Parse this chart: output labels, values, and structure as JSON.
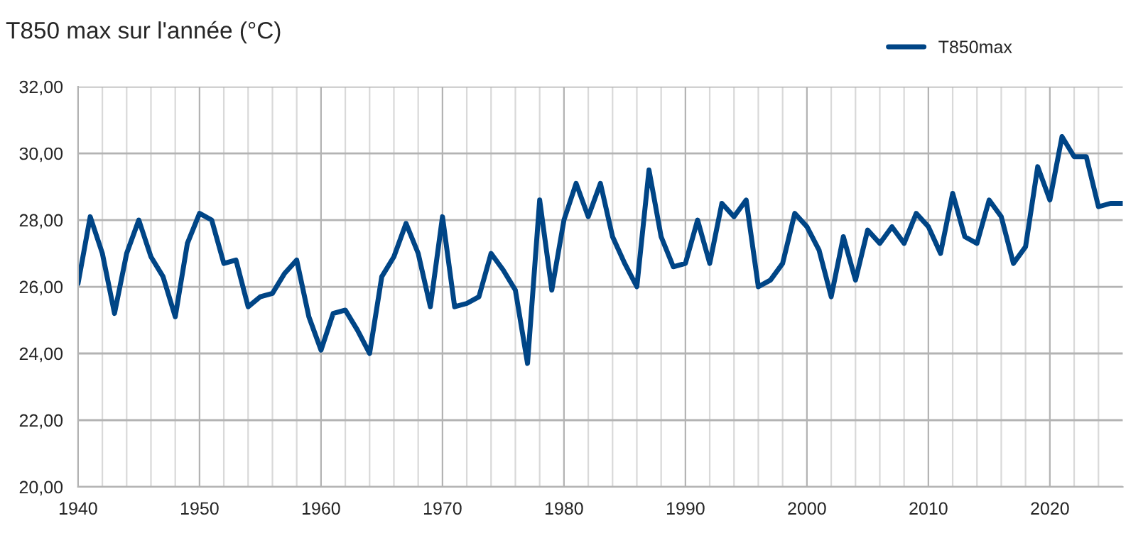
{
  "chart_data": {
    "type": "line",
    "title": "T850 max sur l'année (°C)",
    "x": [
      1940,
      1941,
      1942,
      1943,
      1944,
      1945,
      1946,
      1947,
      1948,
      1949,
      1950,
      1951,
      1952,
      1953,
      1954,
      1955,
      1956,
      1957,
      1958,
      1959,
      1960,
      1961,
      1962,
      1963,
      1964,
      1965,
      1966,
      1967,
      1968,
      1969,
      1970,
      1971,
      1972,
      1973,
      1974,
      1975,
      1976,
      1977,
      1978,
      1979,
      1980,
      1981,
      1982,
      1983,
      1984,
      1985,
      1986,
      1987,
      1988,
      1989,
      1990,
      1991,
      1992,
      1993,
      1994,
      1995,
      1996,
      1997,
      1998,
      1999,
      2000,
      2001,
      2002,
      2003,
      2004,
      2005,
      2006,
      2007,
      2008,
      2009,
      2010,
      2011,
      2012,
      2013,
      2014,
      2015,
      2016,
      2017,
      2018,
      2019,
      2020,
      2021,
      2022,
      2023,
      2024,
      2025,
      2026
    ],
    "series": [
      {
        "name": "T850max",
        "color": "#004586",
        "values": [
          26.1,
          28.1,
          27.0,
          25.2,
          27.0,
          28.0,
          26.9,
          26.3,
          25.1,
          27.3,
          28.2,
          28.0,
          26.7,
          26.8,
          25.4,
          25.7,
          25.8,
          26.4,
          26.8,
          25.1,
          24.1,
          25.2,
          25.3,
          24.7,
          24.0,
          26.3,
          26.9,
          27.9,
          27.0,
          25.4,
          28.1,
          25.4,
          25.5,
          25.7,
          27.0,
          26.5,
          25.9,
          23.7,
          28.6,
          25.9,
          28.0,
          29.1,
          28.1,
          29.1,
          27.5,
          26.7,
          26.0,
          29.5,
          27.5,
          26.6,
          26.7,
          28.0,
          26.7,
          28.5,
          28.1,
          28.6,
          26.0,
          26.2,
          26.7,
          28.2,
          27.8,
          27.1,
          25.7,
          27.5,
          26.2,
          27.7,
          27.3,
          27.8,
          27.3,
          28.2,
          27.8,
          27.0,
          28.8,
          27.5,
          27.3,
          28.6,
          28.1,
          26.7,
          27.2,
          29.6,
          28.6,
          30.5,
          29.9,
          29.9,
          28.4,
          28.5,
          28.5
        ]
      }
    ],
    "xlim": [
      1940,
      2026
    ],
    "xticks": [
      1940,
      {
        "value": 1942,
        "label": null
      },
      {
        "value": 1944,
        "label": null
      },
      {
        "value": 1946,
        "label": null
      },
      {
        "value": 1948,
        "label": null
      },
      1950,
      {
        "value": 1952,
        "label": null
      },
      {
        "value": 1954,
        "label": null
      },
      {
        "value": 1956,
        "label": null
      },
      {
        "value": 1958,
        "label": null
      },
      1960,
      {
        "value": 1962,
        "label": null
      },
      {
        "value": 1964,
        "label": null
      },
      {
        "value": 1966,
        "label": null
      },
      {
        "value": 1968,
        "label": null
      },
      1970,
      {
        "value": 1972,
        "label": null
      },
      {
        "value": 1974,
        "label": null
      },
      {
        "value": 1976,
        "label": null
      },
      {
        "value": 1978,
        "label": null
      },
      1980,
      {
        "value": 1982,
        "label": null
      },
      {
        "value": 1984,
        "label": null
      },
      {
        "value": 1986,
        "label": null
      },
      {
        "value": 1988,
        "label": null
      },
      1990,
      {
        "value": 1992,
        "label": null
      },
      {
        "value": 1994,
        "label": null
      },
      {
        "value": 1996,
        "label": null
      },
      {
        "value": 1998,
        "label": null
      },
      2000,
      {
        "value": 2002,
        "label": null
      },
      {
        "value": 2004,
        "label": null
      },
      {
        "value": 2006,
        "label": null
      },
      {
        "value": 2008,
        "label": null
      },
      2010,
      {
        "value": 2012,
        "label": null
      },
      {
        "value": 2014,
        "label": null
      },
      {
        "value": 2016,
        "label": null
      },
      {
        "value": 2018,
        "label": null
      },
      2020,
      {
        "value": 2022,
        "label": null
      },
      {
        "value": 2024,
        "label": null
      }
    ],
    "ylim": [
      20,
      32
    ],
    "yticks": [
      {
        "value": 20,
        "label": "20,00"
      },
      {
        "value": 22,
        "label": "22,00"
      },
      {
        "value": 24,
        "label": "24,00"
      },
      {
        "value": 26,
        "label": "26,00"
      },
      {
        "value": 28,
        "label": "28,00"
      },
      {
        "value": 30,
        "label": "30,00"
      },
      {
        "value": 32,
        "label": "32,00"
      }
    ],
    "grid": true,
    "legend": "top right",
    "marker": "none",
    "line_style": "solid"
  }
}
